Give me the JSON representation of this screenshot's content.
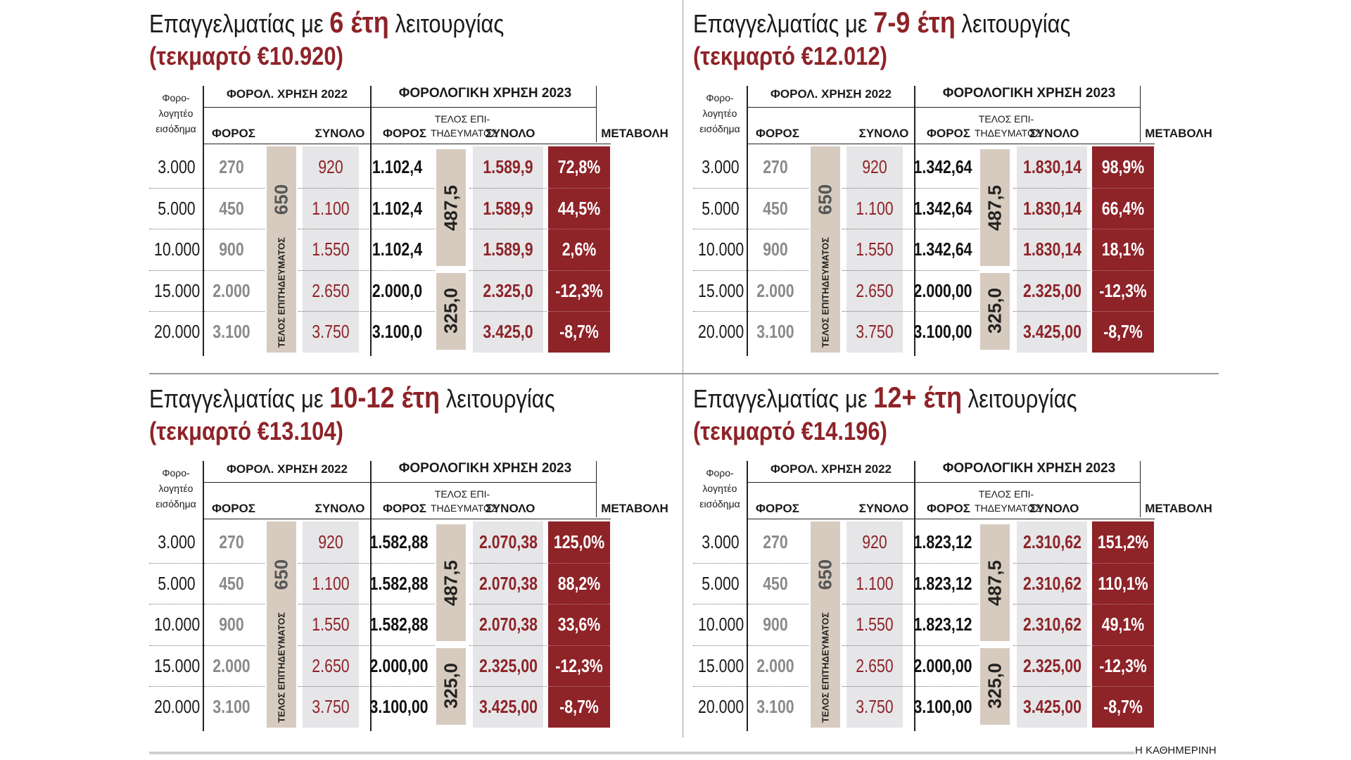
{
  "credit": "Η ΚΑΘΗΜΕΡΙΝΗ",
  "labels": {
    "income_l1": "Φορο-",
    "income_l2": "λογητέο",
    "income_l3": "εισόδημα",
    "h2022": "ΦΟΡΟΛ. ΧΡΗΣΗ 2022",
    "h2023": "ΦΟΡΟΛΟΓΙΚΗ ΧΡΗΣΗ 2023",
    "tax": "ΦΟΡΟΣ",
    "total": "ΣΥΝΟΛΟ",
    "fee_l1": "ΤΕΛΟΣ ΕΠΙ-",
    "fee_l2": "ΤΗΔΕΥΜΑΤΟΣ",
    "change": "ΜΕΤΑΒΟΛΗ",
    "fee_vertical": "ΤΕΛΟΣ ΕΠΙΤΗΔΕΥΜΑΤΟΣ",
    "fee2022": "650",
    "fee2023_a": "487,5",
    "fee2023_b": "325,0"
  },
  "chart_data": [
    {
      "type": "table",
      "title_pre": "Επαγγελματίας με ",
      "title_hl": "6 έτη",
      "title_post": " λειτουργίας",
      "subtitle": "(τεκμαρτό €10.920)",
      "rows": [
        {
          "income": "3.000",
          "tax2022": "270",
          "total2022": "920",
          "tax2023": "1.102,4",
          "total2023": "1.589,9",
          "change": "72,8%"
        },
        {
          "income": "5.000",
          "tax2022": "450",
          "total2022": "1.100",
          "tax2023": "1.102,4",
          "total2023": "1.589,9",
          "change": "44,5%"
        },
        {
          "income": "10.000",
          "tax2022": "900",
          "total2022": "1.550",
          "tax2023": "1.102,4",
          "total2023": "1.589,9",
          "change": "2,6%"
        },
        {
          "income": "15.000",
          "tax2022": "2.000",
          "total2022": "2.650",
          "tax2023": "2.000,0",
          "total2023": "2.325,0",
          "change": "-12,3%"
        },
        {
          "income": "20.000",
          "tax2022": "3.100",
          "total2022": "3.750",
          "tax2023": "3.100,0",
          "total2023": "3.425,0",
          "change": "-8,7%"
        }
      ]
    },
    {
      "type": "table",
      "title_pre": "Επαγγελματίας με ",
      "title_hl": "7-9 έτη",
      "title_post": " λειτουργίας",
      "subtitle": "(τεκμαρτό €12.012)",
      "rows": [
        {
          "income": "3.000",
          "tax2022": "270",
          "total2022": "920",
          "tax2023": "1.342,64",
          "total2023": "1.830,14",
          "change": "98,9%"
        },
        {
          "income": "5.000",
          "tax2022": "450",
          "total2022": "1.100",
          "tax2023": "1.342,64",
          "total2023": "1.830,14",
          "change": "66,4%"
        },
        {
          "income": "10.000",
          "tax2022": "900",
          "total2022": "1.550",
          "tax2023": "1.342,64",
          "total2023": "1.830,14",
          "change": "18,1%"
        },
        {
          "income": "15.000",
          "tax2022": "2.000",
          "total2022": "2.650",
          "tax2023": "2.000,00",
          "total2023": "2.325,00",
          "change": "-12,3%"
        },
        {
          "income": "20.000",
          "tax2022": "3.100",
          "total2022": "3.750",
          "tax2023": "3.100,00",
          "total2023": "3.425,00",
          "change": "-8,7%"
        }
      ]
    },
    {
      "type": "table",
      "title_pre": "Επαγγελματίας με ",
      "title_hl": "10-12 έτη",
      "title_post": " λειτουργίας",
      "subtitle": "(τεκμαρτό €13.104)",
      "rows": [
        {
          "income": "3.000",
          "tax2022": "270",
          "total2022": "920",
          "tax2023": "1.582,88",
          "total2023": "2.070,38",
          "change": "125,0%"
        },
        {
          "income": "5.000",
          "tax2022": "450",
          "total2022": "1.100",
          "tax2023": "1.582,88",
          "total2023": "2.070,38",
          "change": "88,2%"
        },
        {
          "income": "10.000",
          "tax2022": "900",
          "total2022": "1.550",
          "tax2023": "1.582,88",
          "total2023": "2.070,38",
          "change": "33,6%"
        },
        {
          "income": "15.000",
          "tax2022": "2.000",
          "total2022": "2.650",
          "tax2023": "2.000,00",
          "total2023": "2.325,00",
          "change": "-12,3%"
        },
        {
          "income": "20.000",
          "tax2022": "3.100",
          "total2022": "3.750",
          "tax2023": "3.100,00",
          "total2023": "3.425,00",
          "change": "-8,7%"
        }
      ]
    },
    {
      "type": "table",
      "title_pre": "Επαγγελματίας με ",
      "title_hl": "12+ έτη",
      "title_post": " λειτουργίας",
      "subtitle": "(τεκμαρτό €14.196)",
      "rows": [
        {
          "income": "3.000",
          "tax2022": "270",
          "total2022": "920",
          "tax2023": "1.823,12",
          "total2023": "2.310,62",
          "change": "151,2%"
        },
        {
          "income": "5.000",
          "tax2022": "450",
          "total2022": "1.100",
          "tax2023": "1.823,12",
          "total2023": "2.310,62",
          "change": "110,1%"
        },
        {
          "income": "10.000",
          "tax2022": "900",
          "total2022": "1.550",
          "tax2023": "1.823,12",
          "total2023": "2.310,62",
          "change": "49,1%"
        },
        {
          "income": "15.000",
          "tax2022": "2.000",
          "total2022": "2.650",
          "tax2023": "2.000,00",
          "total2023": "2.325,00",
          "change": "-12,3%"
        },
        {
          "income": "20.000",
          "tax2022": "3.100",
          "total2022": "3.750",
          "tax2023": "3.100,00",
          "total2023": "3.425,00",
          "change": "-8,7%"
        }
      ]
    }
  ]
}
